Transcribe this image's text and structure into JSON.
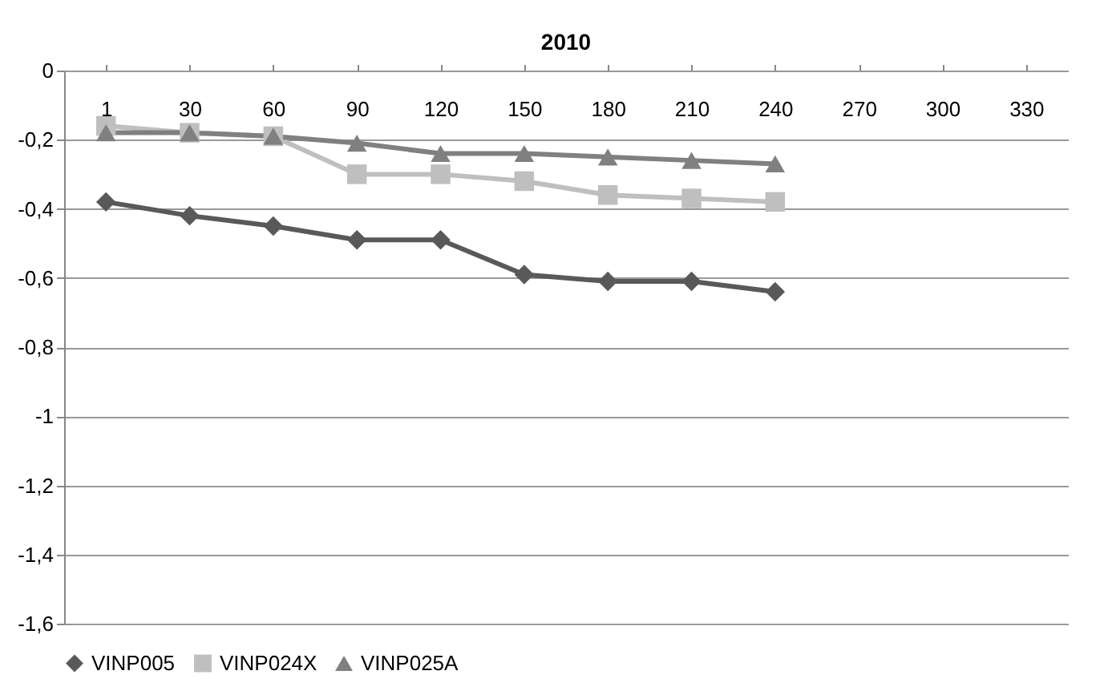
{
  "chart_data": {
    "type": "line",
    "title": "2010",
    "categories": [
      "1",
      "30",
      "60",
      "90",
      "120",
      "150",
      "180",
      "210",
      "240",
      "270",
      "300",
      "330"
    ],
    "series": [
      {
        "name": "VINP005",
        "color": "#595959",
        "marker": "diamond",
        "values": [
          -0.38,
          -0.42,
          -0.45,
          -0.49,
          -0.49,
          -0.59,
          -0.61,
          -0.61,
          -0.64,
          null,
          null,
          null
        ]
      },
      {
        "name": "VINP024X",
        "color": "#bfbfbf",
        "marker": "square",
        "values": [
          -0.16,
          -0.18,
          -0.19,
          -0.3,
          -0.3,
          -0.32,
          -0.36,
          -0.37,
          -0.38,
          null,
          null,
          null
        ]
      },
      {
        "name": "VINP025A",
        "color": "#808080",
        "marker": "triangle",
        "values": [
          -0.18,
          -0.18,
          -0.19,
          -0.21,
          -0.24,
          -0.24,
          -0.25,
          -0.26,
          -0.27,
          null,
          null,
          null
        ]
      }
    ],
    "ylim": [
      -1.6,
      0
    ],
    "yticks": [
      {
        "value": 0,
        "label": "0"
      },
      {
        "value": -0.2,
        "label": "-0,2"
      },
      {
        "value": -0.4,
        "label": "-0,4"
      },
      {
        "value": -0.6,
        "label": "-0,6"
      },
      {
        "value": -0.8,
        "label": "-0,8"
      },
      {
        "value": -1,
        "label": "-1"
      },
      {
        "value": -1.2,
        "label": "-1,2"
      },
      {
        "value": -1.4,
        "label": "-1,4"
      },
      {
        "value": -1.6,
        "label": "-1,6"
      }
    ],
    "grid": "y",
    "legend": "bottom"
  }
}
